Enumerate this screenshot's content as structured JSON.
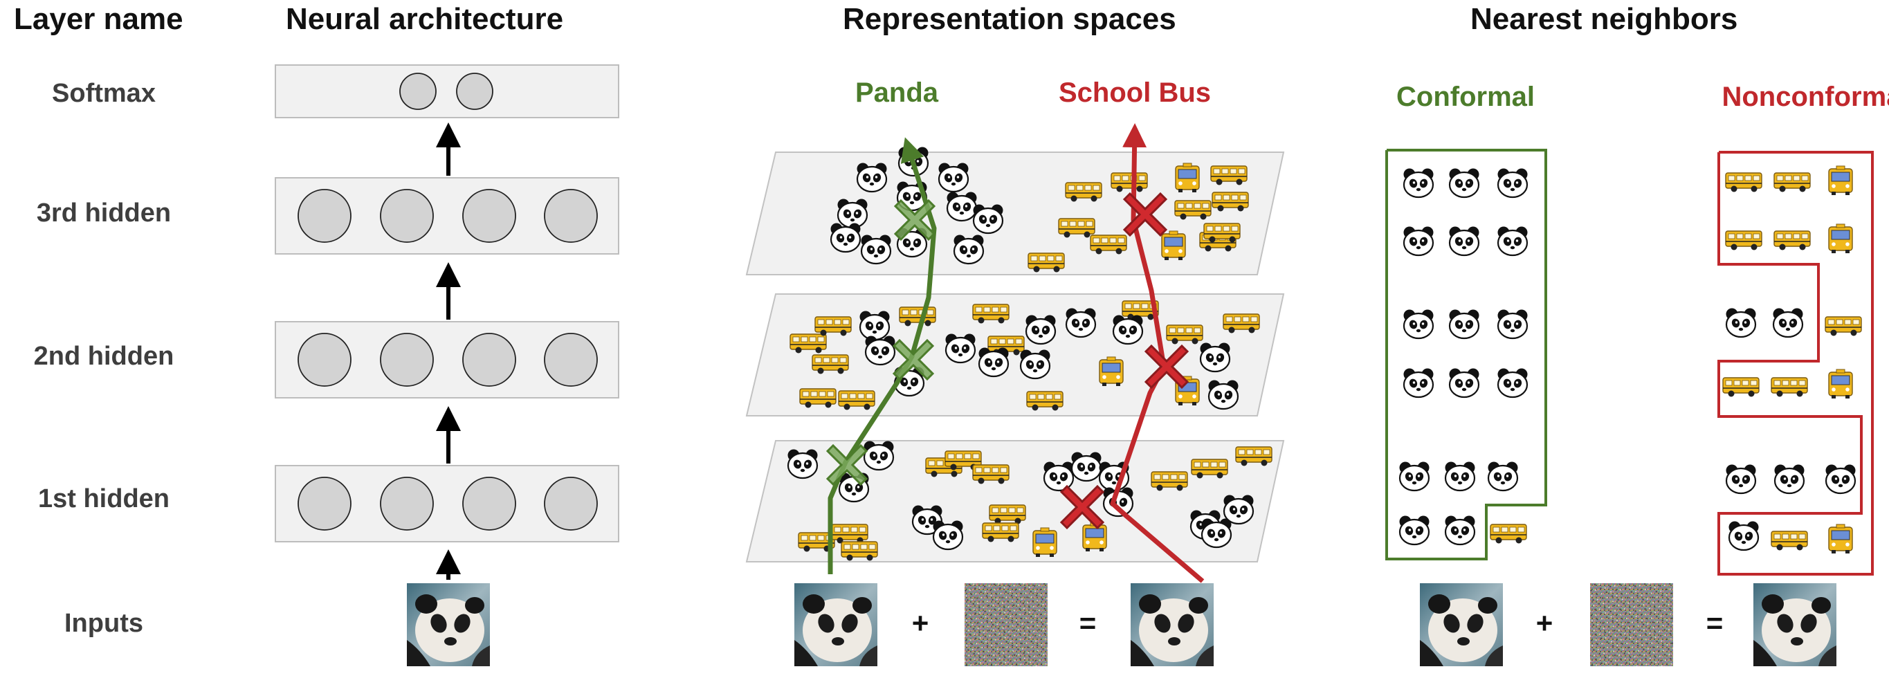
{
  "headers": {
    "layer_name": "Layer name",
    "neural_architecture": "Neural architecture",
    "representation_spaces": "Representation spaces",
    "nearest_neighbors": "Nearest neighbors"
  },
  "layers": [
    "Softmax",
    "3rd hidden",
    "2nd hidden",
    "1st hidden",
    "Inputs"
  ],
  "representation": {
    "panda_label": "Panda",
    "schoolbus_label": "School Bus"
  },
  "neighbors": {
    "conformal_label": "Conformal",
    "nonconformal_label": "Nonconformal"
  },
  "equation": {
    "plus": "+",
    "equals": "="
  },
  "colors": {
    "green": "#4c7c2b",
    "red": "#c0282c",
    "arrow": "#000000",
    "box_fill": "#f1f1f1",
    "box_stroke": "#bdbdbd",
    "neuron_fill": "#d3d3d3",
    "bus_yellow": "#f0b81c",
    "plane_fill": "#f1f1f1"
  },
  "icons": [
    "panda-icon",
    "school-bus-icon",
    "panda-photo",
    "noise-image"
  ]
}
